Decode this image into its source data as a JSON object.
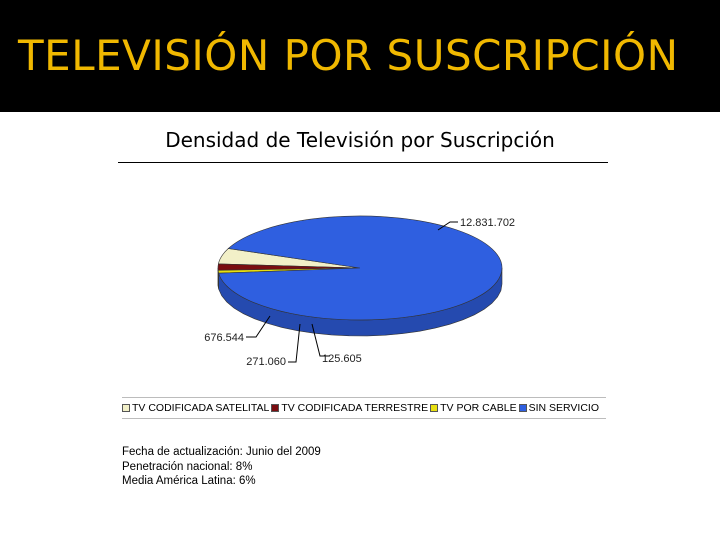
{
  "slide": {
    "title": "TELEVISIÓN POR SUSCRIPCIÓN",
    "title_color": "#f0b800",
    "header_bg": "#000000"
  },
  "chart_data": {
    "type": "pie",
    "title": "Densidad de Televisión por Suscripción",
    "series": [
      {
        "name": "TV CODIFICADA SATELITAL",
        "value": 676544,
        "label": "676.544",
        "color": "#f2f0c8"
      },
      {
        "name": "TV CODIFICADA TERRESTRE",
        "value": 271060,
        "label": "271.060",
        "color": "#7a0d10"
      },
      {
        "name": "TV POR CABLE",
        "value": 125605,
        "label": "125.605",
        "color": "#e8e010"
      },
      {
        "name": "SIN SERVICIO",
        "value": 12831702,
        "label": "12.831.702",
        "color": "#2f5fe0"
      }
    ],
    "legend_position": "bottom"
  },
  "notes": [
    "Fecha de actualización: Junio del 2009",
    "Penetración nacional: 8%",
    "Media América Latina: 6%"
  ]
}
